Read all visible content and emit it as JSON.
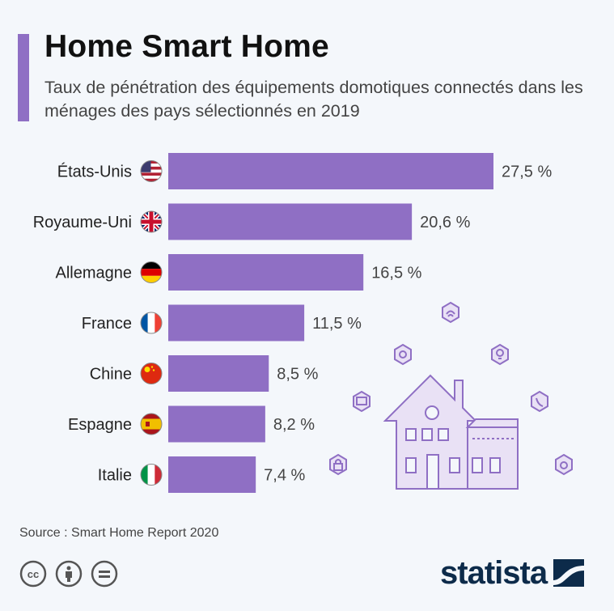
{
  "header": {
    "title": "Home Smart Home",
    "subtitle": "Taux de pénétration des équipements domotiques connectés dans les ménages des pays sélectionnés en 2019"
  },
  "chart_data": {
    "type": "bar",
    "orientation": "horizontal",
    "categories": [
      "États-Unis",
      "Royaume-Uni",
      "Allemagne",
      "France",
      "Chine",
      "Espagne",
      "Italie"
    ],
    "flags": [
      "us-flag-icon",
      "uk-flag-icon",
      "germany-flag-icon",
      "france-flag-icon",
      "china-flag-icon",
      "spain-flag-icon",
      "italy-flag-icon"
    ],
    "values": [
      27.5,
      20.6,
      16.5,
      11.5,
      8.5,
      8.2,
      7.4
    ],
    "value_labels": [
      "27,5 %",
      "20,6 %",
      "16,5 %",
      "11,5 %",
      "8,5 %",
      "8,2 %",
      "7,4 %"
    ],
    "unit": "%",
    "xlim": [
      0,
      27.5
    ],
    "grid": false,
    "bar_color": "#8f6fc4"
  },
  "illustration": {
    "name": "smart-house-icon",
    "satellites": [
      "wifi-icon",
      "lightbulb-icon",
      "phone-icon",
      "tv-icon",
      "gear-icon",
      "lock-icon",
      "washing-machine-icon"
    ]
  },
  "footer": {
    "source": "Source : Smart Home Report 2020",
    "license_icons": [
      "creative-commons-icon",
      "attribution-icon",
      "no-derivatives-icon"
    ],
    "brand": "statista"
  }
}
